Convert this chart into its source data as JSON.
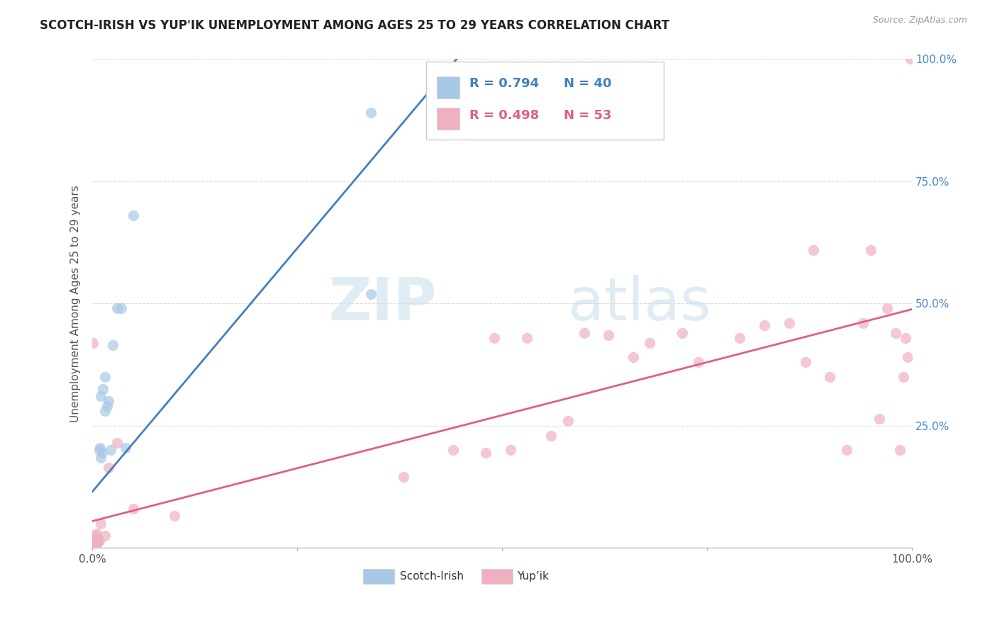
{
  "title": "SCOTCH-IRISH VS YUP'IK UNEMPLOYMENT AMONG AGES 25 TO 29 YEARS CORRELATION CHART",
  "source": "Source: ZipAtlas.com",
  "ylabel": "Unemployment Among Ages 25 to 29 years",
  "xlim": [
    0,
    1.0
  ],
  "ylim": [
    0,
    1.0
  ],
  "xticks": [
    0.0,
    0.25,
    0.5,
    0.75,
    1.0
  ],
  "xticklabels": [
    "0.0%",
    "",
    "",
    "",
    "100.0%"
  ],
  "yticks": [
    0.0,
    0.25,
    0.5,
    0.75,
    1.0
  ],
  "right_yticklabels": [
    "",
    "25.0%",
    "50.0%",
    "75.0%",
    "100.0%"
  ],
  "watermark_zip": "ZIP",
  "watermark_atlas": "atlas",
  "legend_blue_label": "Scotch-Irish",
  "legend_pink_label": "Yup’ik",
  "R_blue": 0.794,
  "N_blue": 40,
  "R_pink": 0.498,
  "N_pink": 53,
  "blue_scatter_color": "#a8c8e8",
  "pink_scatter_color": "#f0b0c0",
  "blue_line_color": "#4080c0",
  "pink_line_color": "#e06080",
  "scotch_irish_x": [
    0.001,
    0.001,
    0.001,
    0.001,
    0.002,
    0.002,
    0.002,
    0.002,
    0.003,
    0.003,
    0.003,
    0.003,
    0.004,
    0.004,
    0.004,
    0.005,
    0.005,
    0.005,
    0.006,
    0.006,
    0.007,
    0.007,
    0.008,
    0.009,
    0.01,
    0.01,
    0.012,
    0.013,
    0.015,
    0.015,
    0.018,
    0.02,
    0.022,
    0.025,
    0.03,
    0.035,
    0.04,
    0.05,
    0.34,
    0.34
  ],
  "scotch_irish_y": [
    0.003,
    0.004,
    0.005,
    0.008,
    0.003,
    0.005,
    0.01,
    0.015,
    0.005,
    0.01,
    0.015,
    0.02,
    0.008,
    0.012,
    0.018,
    0.01,
    0.015,
    0.02,
    0.01,
    0.02,
    0.015,
    0.02,
    0.2,
    0.205,
    0.185,
    0.31,
    0.195,
    0.325,
    0.28,
    0.35,
    0.29,
    0.3,
    0.2,
    0.415,
    0.49,
    0.49,
    0.205,
    0.68,
    0.52,
    0.89
  ],
  "yupik_x": [
    0.001,
    0.001,
    0.001,
    0.001,
    0.002,
    0.002,
    0.002,
    0.003,
    0.003,
    0.004,
    0.004,
    0.005,
    0.005,
    0.006,
    0.007,
    0.008,
    0.01,
    0.015,
    0.02,
    0.03,
    0.05,
    0.1,
    0.38,
    0.44,
    0.48,
    0.49,
    0.51,
    0.53,
    0.56,
    0.58,
    0.6,
    0.63,
    0.66,
    0.68,
    0.72,
    0.74,
    0.79,
    0.82,
    0.85,
    0.87,
    0.88,
    0.9,
    0.92,
    0.94,
    0.95,
    0.96,
    0.97,
    0.98,
    0.985,
    0.99,
    0.992,
    0.995,
    0.998
  ],
  "yupik_y": [
    0.005,
    0.008,
    0.015,
    0.42,
    0.005,
    0.01,
    0.02,
    0.005,
    0.015,
    0.008,
    0.025,
    0.01,
    0.03,
    0.01,
    0.02,
    0.015,
    0.05,
    0.025,
    0.165,
    0.215,
    0.08,
    0.065,
    0.145,
    0.2,
    0.195,
    0.43,
    0.2,
    0.43,
    0.23,
    0.26,
    0.44,
    0.435,
    0.39,
    0.42,
    0.44,
    0.38,
    0.43,
    0.455,
    0.46,
    0.38,
    0.61,
    0.35,
    0.2,
    0.46,
    0.61,
    0.265,
    0.49,
    0.44,
    0.2,
    0.35,
    0.43,
    0.39,
    1.0
  ]
}
